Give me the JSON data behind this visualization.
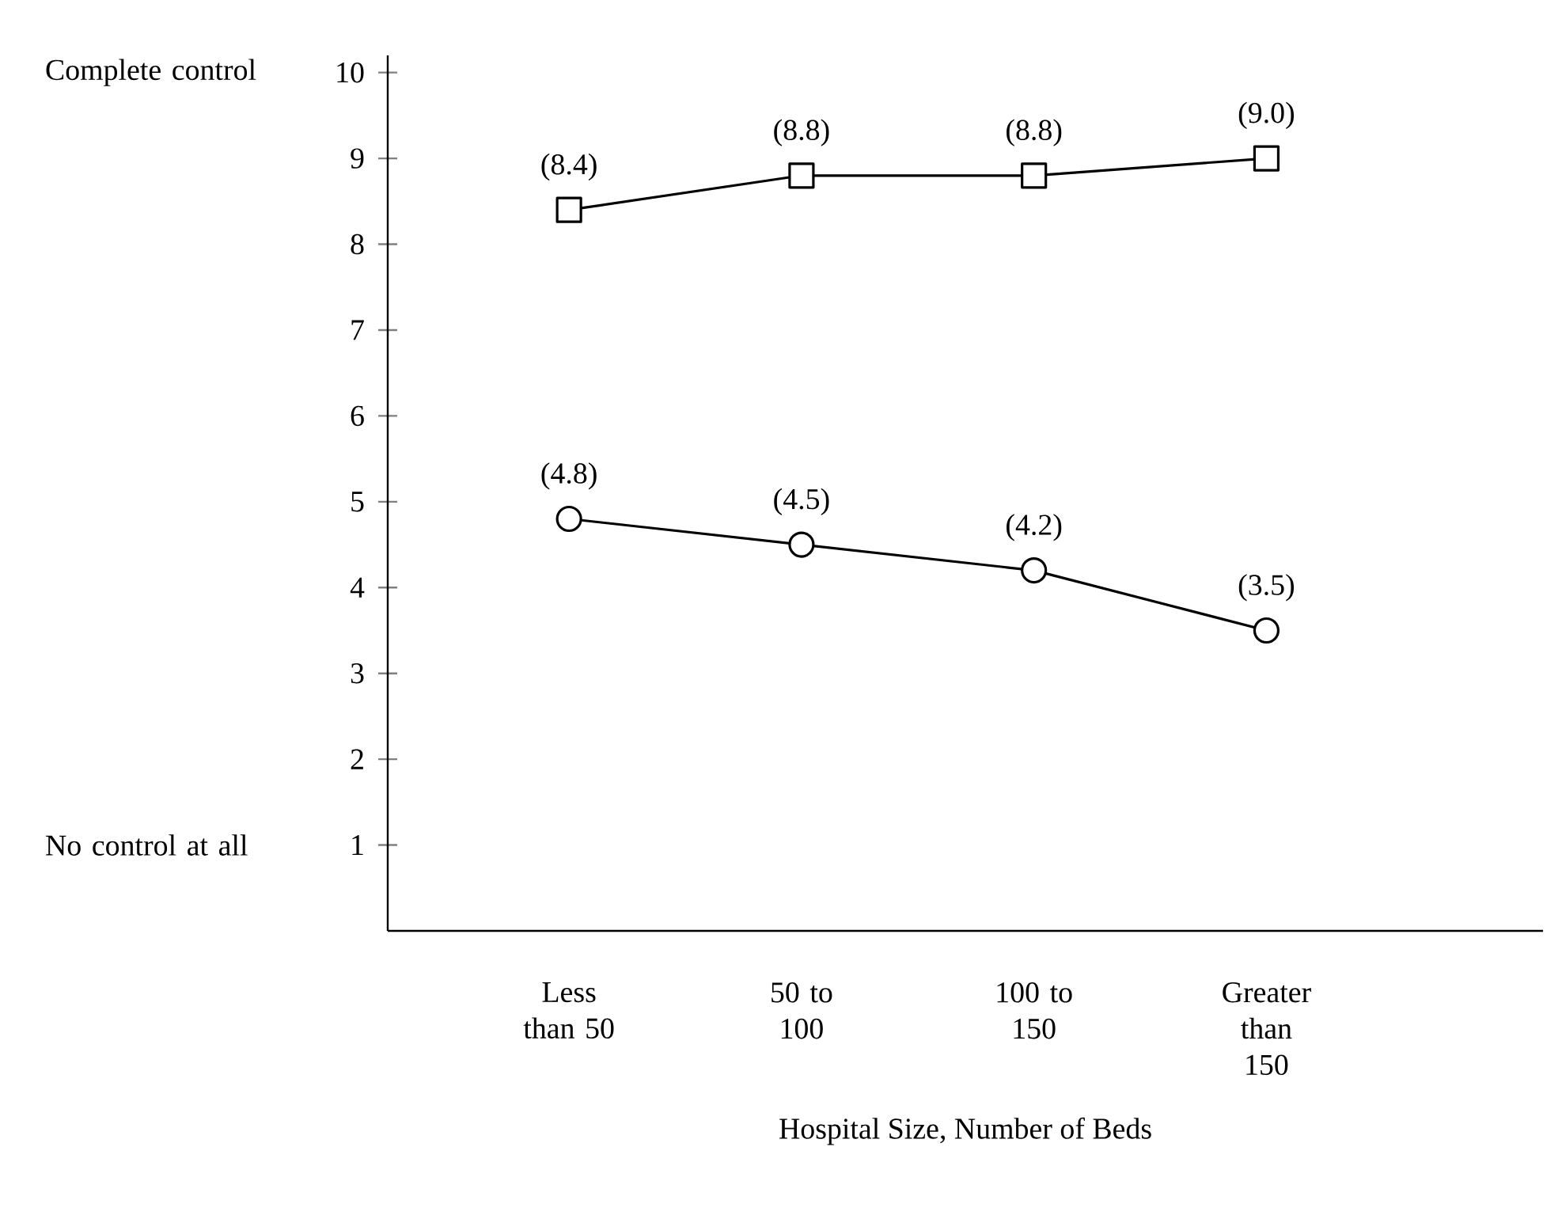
{
  "chart_data": {
    "type": "line",
    "categories": [
      "Less than 50",
      "50 to 100",
      "100 to 150",
      "Greater than 150"
    ],
    "xlabel": "Hospital Size, Number of Beds",
    "series": [
      {
        "color": "#000000",
        "marker": "square",
        "values": [
          8.4,
          8.8,
          8.8,
          9.0
        ],
        "value_labels": [
          "(8.4)",
          "(8.8)",
          "(8.8)",
          "(9.0)"
        ]
      },
      {
        "color": "#000000",
        "marker": "circle",
        "values": [
          4.8,
          4.5,
          4.2,
          3.5
        ],
        "value_labels": [
          "(4.8)",
          "(4.5)",
          "(4.2)",
          "(3.5)"
        ]
      }
    ],
    "ylim": [
      0,
      10.2
    ],
    "yticks": [
      1,
      2,
      3,
      4,
      5,
      6,
      7,
      8,
      9,
      10
    ],
    "annotations": [
      "Complete control",
      "No control at all"
    ],
    "grid": false
  }
}
